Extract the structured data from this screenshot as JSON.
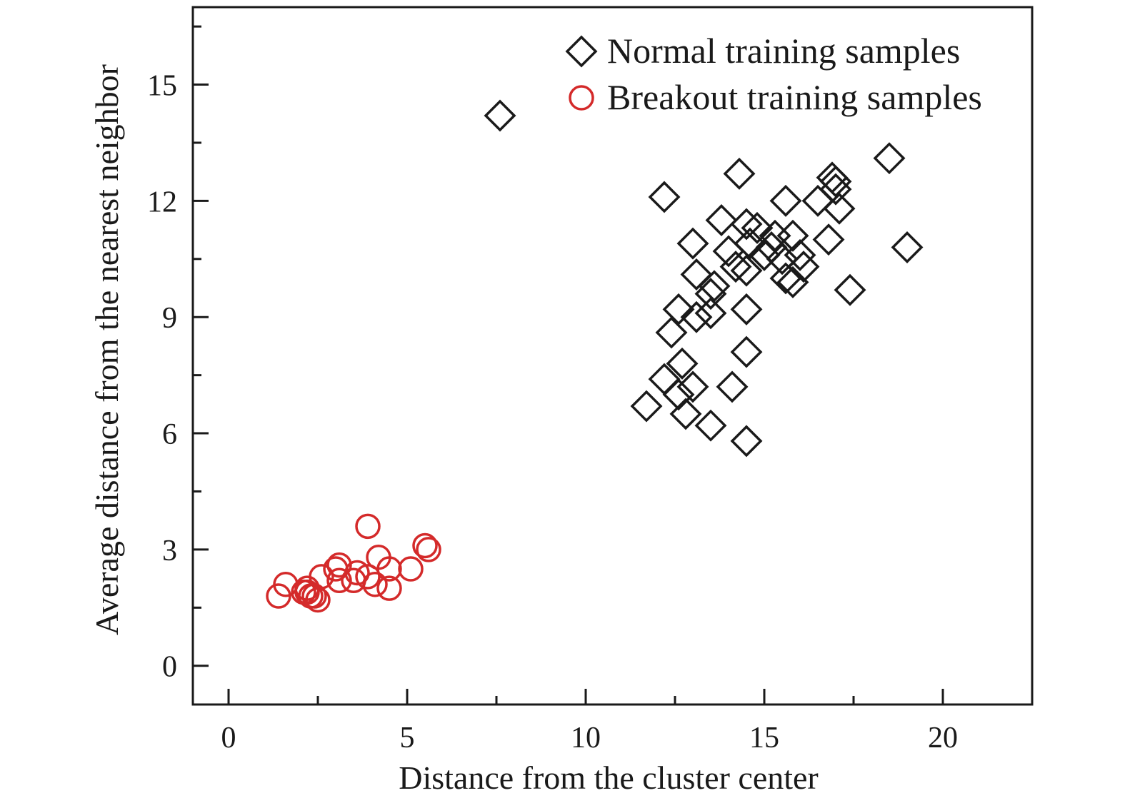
{
  "chart_data": {
    "type": "scatter",
    "title": "",
    "xlabel": "Distance from the cluster center",
    "ylabel": "Average distance from the nearest neighbor",
    "xlim": [
      -1,
      22.5
    ],
    "ylim": [
      -1,
      17
    ],
    "x_ticks": [
      0,
      5,
      10,
      15,
      20
    ],
    "y_ticks": [
      0,
      3,
      6,
      9,
      12,
      15
    ],
    "x_tick_labels": [
      "0",
      "5",
      "10",
      "15",
      "20"
    ],
    "y_tick_labels": [
      "0",
      "3",
      "6",
      "9",
      "12",
      "15"
    ],
    "x_minor_step": 2.5,
    "y_minor_step": 1.5,
    "grid": false,
    "legend_position": "top-right",
    "series": [
      {
        "name": "Normal training samples",
        "marker": "diamond",
        "color": "#1a1a1a",
        "points": [
          [
            7.6,
            14.2
          ],
          [
            18.5,
            13.1
          ],
          [
            14.3,
            12.7
          ],
          [
            16.9,
            12.6
          ],
          [
            17.0,
            12.5
          ],
          [
            17.0,
            12.3
          ],
          [
            12.2,
            12.1
          ],
          [
            16.5,
            12.0
          ],
          [
            15.6,
            12.0
          ],
          [
            17.1,
            11.8
          ],
          [
            13.8,
            11.5
          ],
          [
            14.5,
            11.4
          ],
          [
            14.8,
            11.3
          ],
          [
            15.3,
            11.1
          ],
          [
            15.8,
            11.1
          ],
          [
            13.0,
            10.9
          ],
          [
            16.8,
            11.0
          ],
          [
            14.6,
            10.9
          ],
          [
            15.2,
            10.8
          ],
          [
            19.0,
            10.8
          ],
          [
            14.0,
            10.7
          ],
          [
            15.0,
            10.6
          ],
          [
            16.0,
            10.6
          ],
          [
            15.5,
            10.5
          ],
          [
            16.1,
            10.3
          ],
          [
            14.2,
            10.3
          ],
          [
            14.5,
            10.2
          ],
          [
            13.1,
            10.1
          ],
          [
            15.6,
            10.0
          ],
          [
            15.8,
            9.9
          ],
          [
            13.6,
            9.8
          ],
          [
            13.5,
            9.6
          ],
          [
            17.4,
            9.7
          ],
          [
            12.6,
            9.2
          ],
          [
            13.5,
            9.1
          ],
          [
            14.5,
            9.2
          ],
          [
            13.1,
            9.0
          ],
          [
            12.4,
            8.6
          ],
          [
            14.5,
            8.1
          ],
          [
            12.7,
            7.8
          ],
          [
            12.2,
            7.4
          ],
          [
            12.6,
            7.0
          ],
          [
            13.0,
            7.2
          ],
          [
            14.1,
            7.2
          ],
          [
            11.7,
            6.7
          ],
          [
            12.8,
            6.5
          ],
          [
            13.5,
            6.2
          ],
          [
            14.5,
            5.8
          ]
        ]
      },
      {
        "name": "Breakout training samples",
        "marker": "circle",
        "color": "#d42a2a",
        "points": [
          [
            3.9,
            3.6
          ],
          [
            5.5,
            3.1
          ],
          [
            5.6,
            3.0
          ],
          [
            4.2,
            2.8
          ],
          [
            3.1,
            2.6
          ],
          [
            3.0,
            2.5
          ],
          [
            4.5,
            2.5
          ],
          [
            5.1,
            2.5
          ],
          [
            2.6,
            2.3
          ],
          [
            3.6,
            2.4
          ],
          [
            3.9,
            2.3
          ],
          [
            3.1,
            2.2
          ],
          [
            3.5,
            2.2
          ],
          [
            4.1,
            2.1
          ],
          [
            1.6,
            2.1
          ],
          [
            4.5,
            2.0
          ],
          [
            2.2,
            2.0
          ],
          [
            2.1,
            1.9
          ],
          [
            1.4,
            1.8
          ],
          [
            2.4,
            1.8
          ],
          [
            2.2,
            1.9
          ],
          [
            2.5,
            1.7
          ],
          [
            2.3,
            1.8
          ]
        ]
      }
    ]
  }
}
